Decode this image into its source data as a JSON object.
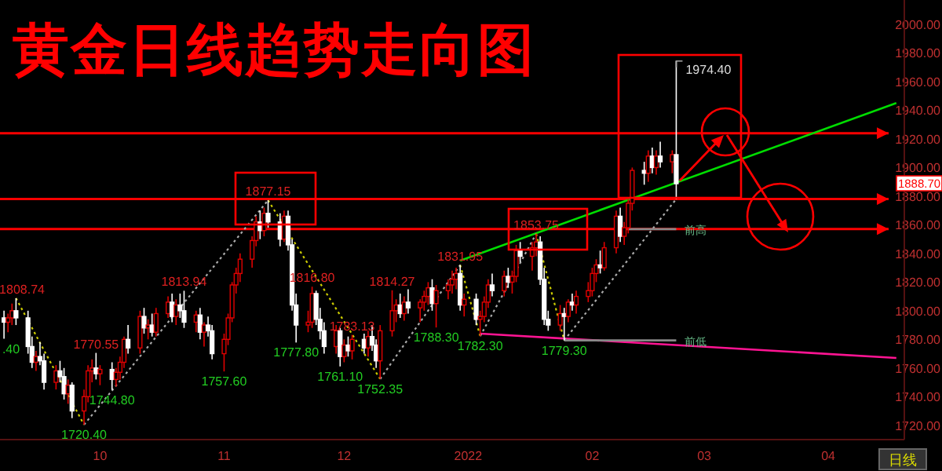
{
  "chart_data": {
    "type": "candlestick",
    "title": "黄金日线趋势走向图",
    "x": [
      "2021-09-07",
      "2021-09-08",
      "2021-09-09",
      "2021-09-10",
      "2021-09-13",
      "2021-09-14",
      "2021-09-15",
      "2021-09-16",
      "2021-09-17",
      "2021-09-20",
      "2021-09-21",
      "2021-09-22",
      "2021-09-23",
      "2021-09-24",
      "2021-09-27",
      "2021-09-28",
      "2021-09-29",
      "2021-09-30",
      "2021-10-01",
      "2021-10-04",
      "2021-10-05",
      "2021-10-06",
      "2021-10-07",
      "2021-10-08",
      "2021-10-11",
      "2021-10-12",
      "2021-10-13",
      "2021-10-14",
      "2021-10-15",
      "2021-10-18",
      "2021-10-19",
      "2021-10-20",
      "2021-10-21",
      "2021-10-22",
      "2021-10-25",
      "2021-10-26",
      "2021-10-27",
      "2021-10-28",
      "2021-10-29",
      "2021-11-01",
      "2021-11-02",
      "2021-11-03",
      "2021-11-04",
      "2021-11-05",
      "2021-11-08",
      "2021-11-09",
      "2021-11-10",
      "2021-11-11",
      "2021-11-12",
      "2021-11-15",
      "2021-11-16",
      "2021-11-17",
      "2021-11-18",
      "2021-11-19",
      "2021-11-22",
      "2021-11-23",
      "2021-11-24",
      "2021-11-25",
      "2021-11-26",
      "2021-11-29",
      "2021-11-30",
      "2021-12-01",
      "2021-12-02",
      "2021-12-03",
      "2021-12-06",
      "2021-12-07",
      "2021-12-08",
      "2021-12-09",
      "2021-12-10",
      "2021-12-13",
      "2021-12-14",
      "2021-12-15",
      "2021-12-16",
      "2021-12-17",
      "2021-12-20",
      "2021-12-21",
      "2021-12-22",
      "2021-12-23",
      "2021-12-24",
      "2021-12-27",
      "2021-12-28",
      "2021-12-29",
      "2021-12-30",
      "2021-12-31",
      "2022-01-03",
      "2022-01-04",
      "2022-01-05",
      "2022-01-06",
      "2022-01-07",
      "2022-01-10",
      "2022-01-11",
      "2022-01-12",
      "2022-01-13",
      "2022-01-14",
      "2022-01-17",
      "2022-01-18",
      "2022-01-19",
      "2022-01-20",
      "2022-01-21",
      "2022-01-24",
      "2022-01-25",
      "2022-01-26",
      "2022-01-27",
      "2022-01-28",
      "2022-01-31",
      "2022-02-01",
      "2022-02-02",
      "2022-02-03",
      "2022-02-04",
      "2022-02-07",
      "2022-02-08",
      "2022-02-09",
      "2022-02-10",
      "2022-02-11",
      "2022-02-14",
      "2022-02-15",
      "2022-02-16",
      "2022-02-17",
      "2022-02-18",
      "2022-02-21",
      "2022-02-22"
    ],
    "ohlc": [
      [
        1795,
        1800,
        1780.4,
        1792
      ],
      [
        1792,
        1798,
        1785,
        1795
      ],
      [
        1795,
        1805,
        1790,
        1800
      ],
      [
        1800,
        1808.74,
        1790,
        1795
      ],
      [
        1795,
        1800,
        1770,
        1775
      ],
      [
        1775,
        1782,
        1760,
        1764
      ],
      [
        1764,
        1772,
        1758,
        1768
      ],
      [
        1768,
        1778,
        1762,
        1765
      ],
      [
        1765,
        1770,
        1745,
        1750
      ],
      [
        1750,
        1762,
        1745,
        1758
      ],
      [
        1758,
        1765,
        1750,
        1754
      ],
      [
        1754,
        1760,
        1738,
        1742
      ],
      [
        1742,
        1752,
        1735,
        1748
      ],
      [
        1748,
        1750,
        1725,
        1730
      ],
      [
        1730,
        1745,
        1720.4,
        1740
      ],
      [
        1740,
        1762,
        1736,
        1758
      ],
      [
        1758,
        1766,
        1750,
        1760
      ],
      [
        1760,
        1770.55,
        1752,
        1756
      ],
      [
        1756,
        1762,
        1748,
        1759
      ],
      [
        1759,
        1764,
        1744.8,
        1752
      ],
      [
        1752,
        1760,
        1747,
        1757
      ],
      [
        1757,
        1768,
        1752,
        1764
      ],
      [
        1764,
        1782,
        1760,
        1780
      ],
      [
        1780,
        1790,
        1770,
        1774
      ],
      [
        1774,
        1800,
        1770,
        1796
      ],
      [
        1796,
        1802,
        1784,
        1788
      ],
      [
        1788,
        1794,
        1780,
        1790
      ],
      [
        1790,
        1798,
        1782,
        1785
      ],
      [
        1785,
        1802,
        1782,
        1798
      ],
      [
        1798,
        1810,
        1795,
        1806
      ],
      [
        1806,
        1812,
        1792,
        1796
      ],
      [
        1796,
        1808,
        1790,
        1804
      ],
      [
        1804,
        1812,
        1795,
        1800
      ],
      [
        1800,
        1813.94,
        1788,
        1792
      ],
      [
        1792,
        1800,
        1785,
        1797
      ],
      [
        1797,
        1802,
        1780,
        1785
      ],
      [
        1785,
        1792,
        1775,
        1790
      ],
      [
        1790,
        1796,
        1782,
        1786
      ],
      [
        1786,
        1790,
        1766,
        1770
      ],
      [
        1770,
        1784,
        1757.6,
        1780
      ],
      [
        1780,
        1798,
        1776,
        1795
      ],
      [
        1795,
        1820,
        1792,
        1818
      ],
      [
        1818,
        1830,
        1812,
        1826
      ],
      [
        1826,
        1840,
        1820,
        1836
      ],
      [
        1836,
        1852,
        1830,
        1849
      ],
      [
        1849,
        1866,
        1845,
        1862
      ],
      [
        1862,
        1870,
        1850,
        1856
      ],
      [
        1856,
        1872,
        1852,
        1868
      ],
      [
        1868,
        1877.15,
        1858,
        1862
      ],
      [
        1862,
        1868,
        1845,
        1850
      ],
      [
        1850,
        1870,
        1848,
        1866
      ],
      [
        1866,
        1870,
        1842,
        1846
      ],
      [
        1846,
        1850,
        1800,
        1804
      ],
      [
        1804,
        1812,
        1777.8,
        1790
      ],
      [
        1790,
        1800,
        1785,
        1792
      ],
      [
        1792,
        1816.8,
        1788,
        1812
      ],
      [
        1812,
        1814,
        1790,
        1794
      ],
      [
        1794,
        1802,
        1780,
        1786
      ],
      [
        1786,
        1792,
        1770,
        1775
      ],
      [
        1775,
        1790,
        1770,
        1786
      ],
      [
        1786,
        1788,
        1761.1,
        1768
      ],
      [
        1768,
        1780,
        1764,
        1776
      ],
      [
        1776,
        1782,
        1768,
        1772
      ],
      [
        1772,
        1783.13,
        1766,
        1780
      ],
      [
        1780,
        1784,
        1770,
        1774
      ],
      [
        1774,
        1786,
        1768,
        1782
      ],
      [
        1782,
        1790,
        1772,
        1776
      ],
      [
        1776,
        1780,
        1760,
        1765
      ],
      [
        1765,
        1790,
        1752.35,
        1786
      ],
      [
        1786,
        1814.27,
        1782,
        1800
      ],
      [
        1800,
        1808,
        1792,
        1804
      ],
      [
        1804,
        1812,
        1795,
        1798
      ],
      [
        1798,
        1810,
        1793,
        1806
      ],
      [
        1806,
        1815,
        1798,
        1802
      ],
      [
        1802,
        1808,
        1792,
        1806
      ],
      [
        1806,
        1814,
        1800,
        1810
      ],
      [
        1810,
        1820,
        1804,
        1816
      ],
      [
        1816,
        1822,
        1800,
        1805
      ],
      [
        1805,
        1818,
        1788.3,
        1814
      ],
      [
        1814,
        1822,
        1808,
        1818
      ],
      [
        1818,
        1828,
        1812,
        1822
      ],
      [
        1822,
        1830,
        1815,
        1826
      ],
      [
        1826,
        1831.95,
        1800,
        1804
      ],
      [
        1804,
        1812,
        1796,
        1808
      ],
      [
        1808,
        1812,
        1790,
        1794
      ],
      [
        1794,
        1800,
        1782.3,
        1796
      ],
      [
        1796,
        1810,
        1792,
        1806
      ],
      [
        1806,
        1822,
        1802,
        1818
      ],
      [
        1818,
        1826,
        1810,
        1814
      ],
      [
        1814,
        1828,
        1810,
        1824
      ],
      [
        1824,
        1830,
        1816,
        1820
      ],
      [
        1820,
        1828,
        1812,
        1824
      ],
      [
        1824,
        1846,
        1820,
        1842
      ],
      [
        1842,
        1848,
        1834,
        1838
      ],
      [
        1838,
        1848,
        1828,
        1844
      ],
      [
        1844,
        1853.75,
        1838,
        1848
      ],
      [
        1848,
        1852,
        1818,
        1822
      ],
      [
        1822,
        1830,
        1790,
        1794
      ],
      [
        1794,
        1800,
        1786,
        1790
      ],
      [
        1790,
        1804,
        1786,
        1798
      ],
      [
        1798,
        1802,
        1779.3,
        1796
      ],
      [
        1796,
        1808,
        1792,
        1806
      ],
      [
        1806,
        1812,
        1800,
        1804
      ],
      [
        1804,
        1814,
        1798,
        1810
      ],
      [
        1810,
        1820,
        1806,
        1814
      ],
      [
        1814,
        1830,
        1810,
        1826
      ],
      [
        1826,
        1836,
        1820,
        1832
      ],
      [
        1832,
        1842,
        1826,
        1830
      ],
      [
        1830,
        1848,
        1828,
        1844
      ],
      [
        1844,
        1870,
        1840,
        1866
      ],
      [
        1866,
        1872,
        1848,
        1852
      ],
      [
        1852,
        1862,
        1846,
        1858
      ],
      [
        1858,
        1878,
        1854,
        1875
      ],
      [
        1875,
        1900,
        1870,
        1898
      ],
      [
        1898,
        1904,
        1888,
        1896
      ],
      [
        1896,
        1912,
        1890,
        1908
      ],
      [
        1908,
        1914,
        1896,
        1900
      ],
      [
        1900,
        1912,
        1895,
        1908
      ],
      [
        1908,
        1918,
        1900,
        1904
      ],
      [
        1904,
        1912,
        1896,
        1909
      ],
      [
        1909,
        1974.4,
        1878,
        1888.7
      ]
    ],
    "series": [
      {
        "type": "line",
        "color": "#00dd00",
        "line_style": "solid",
        "x": [
          "2021-12-30",
          "2022-04-18"
        ],
        "values": [
          1835,
          1945
        ]
      },
      {
        "type": "line",
        "color": "#ff1493",
        "line_style": "solid",
        "x": [
          "2022-01-04",
          "2022-04-18"
        ],
        "values": [
          1784,
          1767
        ]
      },
      {
        "type": "line",
        "color": "#cccc00",
        "line_style": "dotted",
        "x": [
          "2021-09-10",
          "2021-09-27"
        ],
        "values": [
          1808.74,
          1720.4
        ]
      },
      {
        "type": "line",
        "color": "#aaaaaa",
        "line_style": "dotted",
        "x": [
          "2021-09-27",
          "2021-11-12"
        ],
        "values": [
          1720.4,
          1877.15
        ]
      },
      {
        "type": "line",
        "color": "#cccc00",
        "line_style": "dotted",
        "x": [
          "2021-11-12",
          "2021-12-10"
        ],
        "values": [
          1877.15,
          1752.35
        ]
      },
      {
        "type": "line",
        "color": "#aaaaaa",
        "line_style": "dotted",
        "x": [
          "2021-12-10",
          "2021-12-30"
        ],
        "values": [
          1752.35,
          1831.95
        ]
      },
      {
        "type": "line",
        "color": "#cccc00",
        "line_style": "dotted",
        "x": [
          "2021-12-30",
          "2022-01-04"
        ],
        "values": [
          1831.95,
          1782.3
        ]
      },
      {
        "type": "line",
        "color": "#aaaaaa",
        "line_style": "dotted",
        "x": [
          "2022-01-04",
          "2022-01-18"
        ],
        "values": [
          1782.3,
          1853.75
        ]
      },
      {
        "type": "line",
        "color": "#cccc00",
        "line_style": "dotted",
        "x": [
          "2022-01-18",
          "2022-01-25"
        ],
        "values": [
          1853.75,
          1779.3
        ]
      },
      {
        "type": "line",
        "color": "#aaaaaa",
        "line_style": "dotted",
        "x": [
          "2022-01-25",
          "2022-02-22"
        ],
        "values": [
          1779.3,
          1878
        ]
      },
      {
        "type": "line",
        "color": "#888888",
        "line_style": "solid",
        "x": [
          "2022-02-10",
          "2022-02-22"
        ],
        "values": [
          1857,
          1857
        ]
      },
      {
        "type": "line",
        "color": "#888888",
        "line_style": "solid",
        "x": [
          "2022-01-25",
          "2022-02-22"
        ],
        "values": [
          1779.3,
          1779.3
        ]
      }
    ],
    "ref_lines": [
      {
        "axis": "y",
        "value": 1878,
        "color": "#ff0000"
      },
      {
        "axis": "y",
        "value": 1857,
        "color": "#ff0000"
      },
      {
        "axis": "y",
        "value": 1924,
        "color": "#ff0000"
      }
    ],
    "annotations": [
      {
        "text": ".40",
        "x": "2021-09-07",
        "y": 1780.4
      },
      {
        "text": "1808.74",
        "x": "2021-09-10",
        "y": 1808.74
      },
      {
        "text": "1720.40",
        "x": "2021-09-27",
        "y": 1720.4
      },
      {
        "text": "1770.55",
        "x": "2021-09-30",
        "y": 1770.55
      },
      {
        "text": "1744.80",
        "x": "2021-10-04",
        "y": 1744.8
      },
      {
        "text": "1813.94",
        "x": "2021-10-22",
        "y": 1813.94
      },
      {
        "text": "1757.60",
        "x": "2021-11-01",
        "y": 1757.6
      },
      {
        "text": "1877.15",
        "x": "2021-11-12",
        "y": 1877.15
      },
      {
        "text": "1777.80",
        "x": "2021-11-19",
        "y": 1777.8
      },
      {
        "text": "1816.80",
        "x": "2021-11-23",
        "y": 1816.8
      },
      {
        "text": "1761.10",
        "x": "2021-11-30",
        "y": 1761.1
      },
      {
        "text": "1783.13",
        "x": "2021-12-03",
        "y": 1783.13
      },
      {
        "text": "1752.35",
        "x": "2021-12-10",
        "y": 1752.35
      },
      {
        "text": "1814.27",
        "x": "2021-12-13",
        "y": 1814.27
      },
      {
        "text": "1788.30",
        "x": "2021-12-24",
        "y": 1788.3
      },
      {
        "text": "1831.95",
        "x": "2021-12-30",
        "y": 1831.95
      },
      {
        "text": "1782.30",
        "x": "2022-01-04",
        "y": 1782.3
      },
      {
        "text": "1853.75",
        "x": "2022-01-18",
        "y": 1853.75
      },
      {
        "text": "1779.30",
        "x": "2022-01-25",
        "y": 1779.3
      },
      {
        "text": "1974.40",
        "x": "2022-02-22",
        "y": 1974.4
      },
      {
        "text": "前高",
        "x": "2022-02-24",
        "y": 1857
      },
      {
        "text": "前低",
        "x": "2022-02-24",
        "y": 1779.3
      },
      {
        "text": "1888.70",
        "y": 1888.7
      },
      "日线"
    ],
    "xlim": [
      "2021-09-06",
      "2022-04-20"
    ],
    "xticks": [
      {
        "value": "2021-10-01",
        "label": "10"
      },
      {
        "value": "2021-11-01",
        "label": "11"
      },
      {
        "value": "2021-12-01",
        "label": "12"
      },
      {
        "value": "2022-01-01",
        "label": "2022"
      },
      {
        "value": "2022-02-01",
        "label": "02"
      },
      {
        "value": "2022-03-01",
        "label": "03"
      },
      {
        "value": "2022-04-01",
        "label": "04"
      }
    ],
    "ylim": [
      1710,
      2017
    ],
    "yticks": [
      {
        "value": 1720,
        "label": "1720.00"
      },
      {
        "value": 1740,
        "label": "1740.00"
      },
      {
        "value": 1760,
        "label": "1760.00"
      },
      {
        "value": 1780,
        "label": "1780.00"
      },
      {
        "value": 1800,
        "label": "1800.00"
      },
      {
        "value": 1820,
        "label": "1820.00"
      },
      {
        "value": 1840,
        "label": "1840.00"
      },
      {
        "value": 1860,
        "label": "1860.00"
      },
      {
        "value": 1880,
        "label": "1880.00"
      },
      {
        "value": 1900,
        "label": "1900.00"
      },
      {
        "value": 1920,
        "label": "1920.00"
      },
      {
        "value": 1940,
        "label": "1940.00"
      },
      {
        "value": 1960,
        "label": "1960.00"
      },
      {
        "value": 1980,
        "label": "1980.00"
      },
      {
        "value": 2000,
        "label": "2000.00"
      }
    ],
    "marker": "none",
    "grid": false
  }
}
